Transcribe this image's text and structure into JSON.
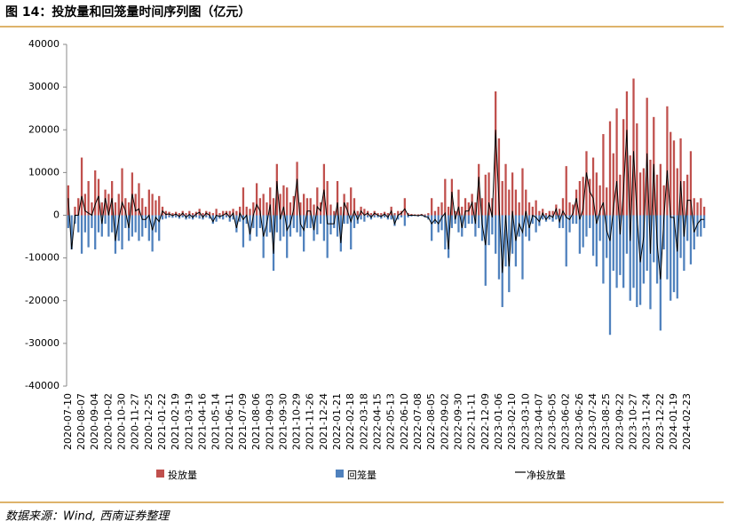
{
  "chart_data": {
    "type": "bar",
    "title": "图 14：投放量和回笼量时间序列图（亿元）",
    "source": "数据来源：Wind, 西南证券整理",
    "categories": [
      "2020-07-10",
      null,
      null,
      null,
      "2020-08-07",
      null,
      null,
      null,
      "2020-09-04",
      null,
      null,
      null,
      "2020-10-02",
      null,
      null,
      null,
      "2020-10-30",
      null,
      null,
      null,
      "2020-11-27",
      null,
      null,
      null,
      "2020-12-25",
      null,
      null,
      null,
      "2021-01-22",
      null,
      null,
      null,
      "2021-02-19",
      null,
      null,
      null,
      "2021-03-19",
      null,
      null,
      null,
      "2021-04-16",
      null,
      null,
      null,
      "2021-05-14",
      null,
      null,
      null,
      "2021-06-11",
      null,
      null,
      null,
      "2021-07-09",
      null,
      null,
      null,
      "2021-08-06",
      null,
      null,
      null,
      "2021-09-03",
      null,
      null,
      null,
      "2021-09-30",
      null,
      null,
      null,
      "2021-10-29",
      null,
      null,
      null,
      "2021-11-26",
      null,
      null,
      null,
      "2021-12-24",
      null,
      null,
      null,
      "2022-01-21",
      null,
      null,
      null,
      "2022-02-18",
      null,
      null,
      null,
      "2022-03-18",
      null,
      null,
      null,
      "2022-04-15",
      null,
      null,
      null,
      "2022-05-13",
      null,
      null,
      null,
      "2022-06-10",
      null,
      null,
      null,
      "2022-07-08",
      null,
      null,
      null,
      "2022-08-05",
      null,
      null,
      null,
      "2022-09-02",
      null,
      null,
      null,
      "2022-09-30",
      null,
      null,
      null,
      "2022-11-11",
      null,
      null,
      null,
      "2022-12-09",
      null,
      null,
      null,
      "2023-01-06",
      null,
      null,
      null,
      "2023-02-10",
      null,
      null,
      null,
      "2023-03-10",
      null,
      null,
      null,
      "2023-04-07",
      null,
      null,
      null,
      "2023-05-05",
      null,
      null,
      null,
      "2023-06-02",
      null,
      null,
      null,
      "2023-06-26",
      null,
      null,
      null,
      "2023-07-24",
      null,
      null,
      null,
      "2023-08-25",
      null,
      null,
      null,
      "2023-09-22",
      null,
      null,
      null,
      "2023-10-27",
      null,
      null,
      null,
      "2023-11-24",
      null,
      null,
      null,
      "2023-12-22",
      null,
      null,
      null,
      "2024-01-19",
      null,
      null,
      null,
      "2024-02-23",
      null,
      null,
      null,
      null,
      null
    ],
    "series": [
      {
        "name": "投放量",
        "color": "#c0504d",
        "values": [
          7000,
          0,
          2000,
          4000,
          13500,
          5000,
          8000,
          3000,
          10500,
          8500,
          3000,
          6000,
          5000,
          8000,
          3000,
          5000,
          11000,
          4000,
          3000,
          10000,
          5000,
          7500,
          4000,
          2000,
          6000,
          5000,
          3500,
          4500,
          2000,
          1000,
          800,
          500,
          800,
          500,
          1000,
          500,
          1000,
          500,
          800,
          1500,
          500,
          1000,
          800,
          500,
          1500,
          500,
          1000,
          1000,
          1000,
          1500,
          1000,
          2000,
          6500,
          2000,
          1500,
          3000,
          7500,
          4000,
          5000,
          3000,
          6500,
          4000,
          12000,
          5000,
          7000,
          6500,
          3000,
          4500,
          12500,
          3000,
          5000,
          4000,
          4000,
          2500,
          6500,
          3000,
          12000,
          8000,
          2500,
          1000,
          8000,
          2000,
          5000,
          3000,
          6500,
          4000,
          1000,
          2000,
          1500,
          1000,
          500,
          1000,
          500,
          500,
          800,
          500,
          2000,
          500,
          1000,
          1000,
          4000,
          500,
          300,
          200,
          200,
          300,
          200,
          500,
          4000,
          1000,
          2000,
          3000,
          8500,
          2000,
          8500,
          1000,
          6000,
          2000,
          4000,
          3000,
          5000,
          3000,
          12000,
          4000,
          9500,
          10000,
          4000,
          29000,
          18000,
          8000,
          12000,
          6000,
          10000,
          6000,
          3000,
          11000,
          6000,
          3000,
          2000,
          3500,
          1000,
          1500,
          500,
          1000,
          1000,
          2500,
          1500,
          4000,
          11500,
          3000,
          2500,
          6000,
          8000,
          9000,
          15000,
          8500,
          13500,
          10000,
          7000,
          19000,
          6500,
          22000,
          14500,
          25000,
          9500,
          22500,
          29000,
          14000,
          32000,
          21500,
          10000,
          11000,
          27500,
          13000,
          23000,
          9500,
          12000,
          7000,
          25500,
          19500,
          17500,
          11000,
          18000,
          8000,
          9500,
          15000,
          4000,
          3000,
          4000,
          2000
        ]
      },
      {
        "name": "回笼量",
        "color": "#4f81bd",
        "values": [
          -3000,
          -8000,
          -2000,
          -4000,
          -9000,
          -4000,
          -7500,
          -3000,
          -8000,
          -4000,
          -5000,
          -2000,
          -5000,
          -4000,
          -9000,
          -6000,
          -8000,
          -3000,
          -6000,
          -5000,
          -4000,
          -6000,
          -5000,
          -3000,
          -6000,
          -8500,
          -4000,
          -6000,
          -1000,
          -800,
          -500,
          -600,
          -500,
          -800,
          -500,
          -1000,
          -800,
          -1000,
          -500,
          -800,
          -1000,
          -500,
          -800,
          -2000,
          -1500,
          -800,
          -1000,
          -500,
          -1500,
          -1000,
          -4000,
          -1500,
          -7500,
          -2000,
          -6000,
          -3000,
          -5000,
          -3000,
          -10000,
          -5000,
          -4000,
          -13000,
          -4000,
          -6000,
          -5000,
          -10000,
          -5000,
          -3000,
          -4000,
          -5000,
          -8500,
          -3000,
          -3000,
          -6000,
          -4500,
          -2000,
          -6000,
          -10000,
          -4500,
          -3000,
          -5000,
          -8500,
          -2000,
          -2000,
          -8000,
          -3000,
          -2000,
          -1000,
          -1500,
          -500,
          -1000,
          -500,
          -500,
          -800,
          -500,
          -1000,
          -1000,
          -2500,
          -1000,
          -500,
          -2500,
          -500,
          -300,
          -200,
          -300,
          -200,
          -500,
          -1000,
          -6000,
          -2000,
          -4000,
          -3500,
          -8000,
          -10000,
          -3000,
          -2000,
          -4000,
          -5000,
          -3000,
          -2000,
          -2000,
          -5000,
          -3000,
          -6000,
          -16500,
          -7000,
          -4500,
          -9000,
          -15000,
          -21500,
          -12000,
          -18000,
          -9000,
          -12000,
          -5000,
          -15000,
          -5000,
          -6000,
          -2000,
          -4000,
          -2500,
          -1000,
          -1500,
          -1000,
          -1500,
          -1000,
          -3000,
          -3000,
          -12000,
          -4000,
          -2000,
          -2000,
          -9000,
          -7500,
          -5000,
          -3000,
          -9500,
          -12000,
          -6000,
          -16000,
          -10000,
          -28000,
          -13000,
          -17000,
          -14000,
          -17000,
          -9000,
          -20000,
          -17000,
          -21500,
          -21000,
          -16000,
          -13000,
          -22000,
          -11000,
          -16000,
          -27000,
          -8000,
          -15000,
          -20000,
          -18000,
          -19500,
          -10000,
          -13000,
          -6000,
          -11500,
          -8000,
          -5000,
          -5000,
          -3000
        ]
      },
      {
        "name": "净投放量",
        "color": "#000000",
        "type": "line",
        "values": [
          4000,
          -8000,
          0,
          0,
          4500,
          1000,
          500,
          0,
          2500,
          4500,
          -2000,
          4000,
          0,
          4000,
          -6000,
          -1000,
          3000,
          1000,
          -3000,
          5000,
          1000,
          1500,
          -1000,
          -1000,
          0,
          -3500,
          -500,
          -1500,
          1000,
          200,
          300,
          -100,
          300,
          -300,
          500,
          -500,
          200,
          -500,
          300,
          700,
          -500,
          500,
          0,
          -1500,
          0,
          -300,
          0,
          500,
          -500,
          500,
          -3000,
          500,
          -1000,
          0,
          -4500,
          0,
          2500,
          1000,
          -5000,
          -2000,
          2500,
          -9000,
          8000,
          -1000,
          2000,
          -3500,
          -2000,
          1500,
          8500,
          -2000,
          -3500,
          1000,
          1000,
          -3500,
          2000,
          1000,
          6000,
          -2000,
          -2000,
          -2000,
          3000,
          -6500,
          3000,
          1000,
          -1500,
          1000,
          -1000,
          1000,
          0,
          500,
          -500,
          500,
          0,
          -300,
          300,
          -500,
          1000,
          -2000,
          0,
          500,
          1500,
          0,
          0,
          0,
          -100,
          100,
          -300,
          -500,
          -2000,
          -1000,
          -2000,
          -500,
          500,
          -8000,
          5500,
          -1000,
          2000,
          -3000,
          1000,
          1000,
          3000,
          -2000,
          9000,
          -2000,
          -7000,
          3000,
          -500,
          20000,
          3000,
          -13500,
          0,
          -12000,
          1000,
          -6000,
          -2000,
          -4000,
          1000,
          -3000,
          0,
          -500,
          -1500,
          500,
          -1000,
          0,
          -500,
          1500,
          -1500,
          1000,
          -500,
          -1000,
          500,
          4000,
          -1000,
          1500,
          10000,
          5500,
          4000,
          -2000,
          1000,
          3000,
          -3500,
          -6000,
          1500,
          8000,
          -4500,
          5500,
          20000,
          -6000,
          15000,
          0,
          -11000,
          -5000,
          14500,
          -9000,
          12000,
          -6500,
          -15000,
          -1000,
          10500,
          -500,
          -500,
          -8500,
          8000,
          -5000,
          3500,
          3500,
          -4000,
          -2000,
          -1000,
          -1000
        ]
      }
    ],
    "ylim": [
      -40000,
      40000
    ],
    "yticks": [
      -40000,
      -30000,
      -20000,
      -10000,
      0,
      10000,
      20000,
      30000,
      40000
    ],
    "grid": false,
    "legend": "bottom"
  }
}
